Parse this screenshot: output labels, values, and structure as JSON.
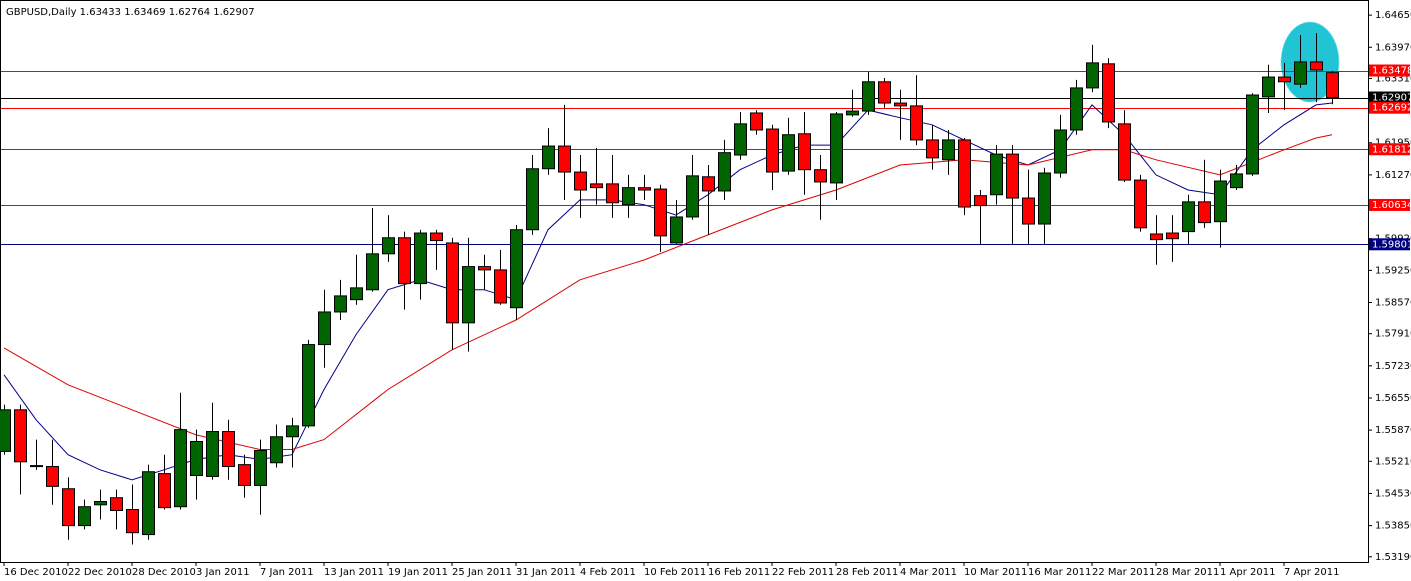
{
  "chart_data": {
    "type": "candlestick",
    "title": "GBPUSD,Daily  1.63433 1.63469 1.62764 1.62907",
    "categories": [
      "16 Dec 2010",
      null,
      null,
      null,
      "22 Dec 2010",
      null,
      null,
      null,
      "28 Dec 2010",
      null,
      null,
      null,
      "3 Jan 2011",
      null,
      null,
      null,
      "7 Jan 2011",
      null,
      null,
      null,
      "13 Jan 2011",
      null,
      null,
      null,
      "19 Jan 2011",
      null,
      null,
      null,
      "25 Jan 2011",
      null,
      null,
      null,
      "31 Jan 2011",
      null,
      null,
      null,
      "4 Feb 2011",
      null,
      null,
      null,
      "10 Feb 2011",
      null,
      null,
      null,
      "16 Feb 2011",
      null,
      null,
      null,
      "22 Feb 2011",
      null,
      null,
      null,
      "28 Feb 2011",
      null,
      null,
      null,
      "4 Mar 2011",
      null,
      null,
      null,
      "10 Mar 2011",
      null,
      null,
      null,
      "16 Mar 2011",
      null,
      null,
      null,
      "22 Mar 2011",
      null,
      null,
      null,
      "28 Mar 2011",
      null,
      null,
      null,
      "1 Apr 2011",
      null,
      null,
      null,
      "7 Apr 2011",
      null,
      null,
      null
    ],
    "open": [
      1.5542,
      1.563,
      1.5512,
      1.551,
      1.5463,
      1.5385,
      1.5429,
      1.5444,
      1.5419,
      1.5366,
      1.5495,
      1.5425,
      1.5491,
      1.5489,
      1.5584,
      1.5514,
      1.547,
      1.5518,
      1.5573,
      1.5596,
      1.5768,
      1.5837,
      1.5863,
      1.5884,
      1.596,
      1.5994,
      1.5897,
      1.6004,
      1.5983,
      1.5814,
      1.5933,
      1.5926,
      1.5846,
      1.6011,
      1.614,
      1.6188,
      1.6133,
      1.6108,
      1.6108,
      1.6064,
      1.61,
      1.6097,
      1.5983,
      1.6038,
      1.6123,
      1.6093,
      1.6169,
      1.6258,
      1.6224,
      1.6135,
      1.6214,
      1.6138,
      1.611,
      1.6254,
      1.6262,
      1.6324,
      1.6279,
      1.6273,
      1.6201,
      1.6159,
      1.6201,
      1.6083,
      1.6085,
      1.6171,
      1.6078,
      1.6023,
      1.6131,
      1.6222,
      1.6311,
      1.6362,
      1.6235,
      1.6116,
      1.6002,
      1.6004,
      1.6007,
      1.607,
      1.6028,
      1.61,
      1.6129,
      1.6292,
      1.6334,
      1.6319,
      1.6366,
      1.63433
    ],
    "high": [
      1.5641,
      1.5641,
      1.5567,
      1.5567,
      1.5487,
      1.544,
      1.5461,
      1.5461,
      1.5472,
      1.5514,
      1.5535,
      1.5666,
      1.5588,
      1.5645,
      1.5609,
      1.5535,
      1.5567,
      1.5599,
      1.5613,
      1.5778,
      1.5884,
      1.5905,
      1.5958,
      1.6057,
      1.6042,
      1.6007,
      1.6011,
      1.6011,
      1.5994,
      1.5994,
      1.5958,
      1.5968,
      1.6021,
      1.6169,
      1.6226,
      1.6275,
      1.6169,
      1.6184,
      1.6169,
      1.6127,
      1.6127,
      1.6106,
      1.6074,
      1.6169,
      1.6148,
      1.6201,
      1.626,
      1.6264,
      1.6233,
      1.6248,
      1.626,
      1.6169,
      1.626,
      1.6307,
      1.6345,
      1.6332,
      1.6307,
      1.6338,
      1.6233,
      1.6222,
      1.6205,
      1.6095,
      1.619,
      1.619,
      1.6138,
      1.6142,
      1.6254,
      1.6328,
      1.6402,
      1.6374,
      1.6264,
      1.6127,
      1.6042,
      1.6042,
      1.6085,
      1.6159,
      1.6138,
      1.6148,
      1.63,
      1.636,
      1.6364,
      1.6423,
      1.6427,
      1.63469
    ],
    "low": [
      1.5535,
      1.5451,
      1.5503,
      1.5429,
      1.5355,
      1.5377,
      1.5398,
      1.5377,
      1.5345,
      1.5355,
      1.5419,
      1.5419,
      1.544,
      1.5482,
      1.5482,
      1.5444,
      1.5408,
      1.5508,
      1.5508,
      1.5592,
      1.5719,
      1.582,
      1.5852,
      1.588,
      1.5943,
      1.5842,
      1.5863,
      1.5926,
      1.5757,
      1.5753,
      1.5884,
      1.5852,
      1.582,
      1.6,
      1.6127,
      1.6074,
      1.6036,
      1.6064,
      1.6036,
      1.6036,
      1.6074,
      1.5964,
      1.5981,
      1.6032,
      1.6,
      1.6074,
      1.6159,
      1.6212,
      1.6095,
      1.6127,
      1.6085,
      1.6032,
      1.6074,
      1.625,
      1.6254,
      1.6269,
      1.6201,
      1.619,
      1.6138,
      1.6127,
      1.6042,
      1.5979,
      1.6064,
      1.5981,
      1.5979,
      1.5981,
      1.6121,
      1.6212,
      1.6302,
      1.6226,
      1.6112,
      1.6007,
      1.5937,
      1.5943,
      1.5979,
      1.6015,
      1.5973,
      1.6095,
      1.6125,
      1.6258,
      1.6264,
      1.6311,
      1.6281,
      1.62764
    ],
    "close": [
      1.563,
      1.552,
      1.5511,
      1.5468,
      1.5385,
      1.5425,
      1.5436,
      1.5417,
      1.537,
      1.5499,
      1.5423,
      1.5588,
      1.5563,
      1.5584,
      1.551,
      1.547,
      1.5544,
      1.5573,
      1.5596,
      1.5768,
      1.5837,
      1.5871,
      1.5888,
      1.596,
      1.5994,
      1.5897,
      1.6004,
      1.5988,
      1.5814,
      1.5933,
      1.5926,
      1.5856,
      1.6011,
      1.614,
      1.6188,
      1.6133,
      1.6095,
      1.61,
      1.6068,
      1.61,
      1.6095,
      1.5998,
      1.6038,
      1.6125,
      1.6093,
      1.6174,
      1.6235,
      1.6222,
      1.6133,
      1.6212,
      1.6138,
      1.6112,
      1.6256,
      1.6262,
      1.6324,
      1.6279,
      1.6273,
      1.6201,
      1.6163,
      1.6201,
      1.6059,
      1.6062,
      1.6171,
      1.6078,
      1.6023,
      1.6131,
      1.6222,
      1.6311,
      1.6364,
      1.6239,
      1.6116,
      1.6015,
      1.599,
      1.5992,
      1.607,
      1.6026,
      1.6114,
      1.6129,
      1.6296,
      1.6334,
      1.6324,
      1.6366,
      1.6349,
      1.62907
    ],
    "up_color": "#006400",
    "down_color": "#ff0000",
    "lines": [
      {
        "color": "#00008b",
        "x": [
          0,
          2,
          4,
          6,
          8,
          10,
          12,
          14,
          16,
          18,
          20,
          22,
          24,
          26,
          28,
          30,
          32,
          34,
          36,
          38,
          40,
          42,
          44,
          46,
          48,
          50,
          52,
          54,
          56,
          58,
          60,
          62,
          64,
          66,
          68,
          70,
          72,
          74,
          76,
          78,
          80,
          82,
          83
        ],
        "values": [
          1.5704,
          1.5609,
          1.5535,
          1.5503,
          1.5482,
          1.5503,
          1.5525,
          1.5535,
          1.5525,
          1.5535,
          1.5673,
          1.5789,
          1.5884,
          1.5905,
          1.5884,
          1.5884,
          1.5863,
          1.6011,
          1.6074,
          1.6074,
          1.6064,
          1.6042,
          1.6085,
          1.6138,
          1.6169,
          1.619,
          1.619,
          1.6264,
          1.6248,
          1.6233,
          1.6201,
          1.6169,
          1.6148,
          1.618,
          1.6275,
          1.6212,
          1.6127,
          1.6095,
          1.6085,
          1.618,
          1.6233,
          1.6275,
          1.6279
        ]
      },
      {
        "color": "#e00000",
        "x": [
          0,
          4,
          8,
          12,
          16,
          18,
          20,
          24,
          28,
          32,
          36,
          40,
          44,
          48,
          52,
          56,
          60,
          64,
          68,
          70,
          72,
          76,
          80,
          82,
          83
        ],
        "values": [
          1.5761,
          1.5683,
          1.563,
          1.5577,
          1.5546,
          1.5546,
          1.5567,
          1.5673,
          1.5757,
          1.582,
          1.5905,
          1.5947,
          1.6,
          1.6053,
          1.6095,
          1.6148,
          1.6159,
          1.6148,
          1.618,
          1.618,
          1.6159,
          1.6127,
          1.618,
          1.6205,
          1.6212
        ]
      }
    ],
    "levels": [
      {
        "value": 1.63478,
        "color": "#ff0000"
      },
      {
        "value": 1.62907,
        "color": "#000000"
      },
      {
        "value": 1.62692,
        "color": "#ff0000"
      },
      {
        "value": 1.61812,
        "color": "#ff0000"
      },
      {
        "value": 1.60634,
        "color": "#ff0000"
      },
      {
        "value": 1.59801,
        "color": "#000080"
      }
    ],
    "ylim": [
      1.5308,
      1.6497
    ],
    "yticks": [
      {
        "value": 1.6465,
        "label": "1.64650"
      },
      {
        "value": 1.6397,
        "label": "1.63970"
      },
      {
        "value": 1.6331,
        "label": "1.63310"
      },
      {
        "value": 1.6195,
        "label": "1.61950"
      },
      {
        "value": 1.6127,
        "label": "1.61270"
      },
      {
        "value": 1.5992,
        "label": "1.59920"
      },
      {
        "value": 1.5925,
        "label": "1.59250"
      },
      {
        "value": 1.5857,
        "label": "1.58570"
      },
      {
        "value": 1.5791,
        "label": "1.57910"
      },
      {
        "value": 1.5723,
        "label": "1.57230"
      },
      {
        "value": 1.5655,
        "label": "1.56550"
      },
      {
        "value": 1.5587,
        "label": "1.55870"
      },
      {
        "value": 1.5521,
        "label": "1.55210"
      },
      {
        "value": 1.5453,
        "label": "1.54530"
      },
      {
        "value": 1.5385,
        "label": "1.53850"
      },
      {
        "value": 1.5319,
        "label": "1.53190"
      }
    ]
  }
}
